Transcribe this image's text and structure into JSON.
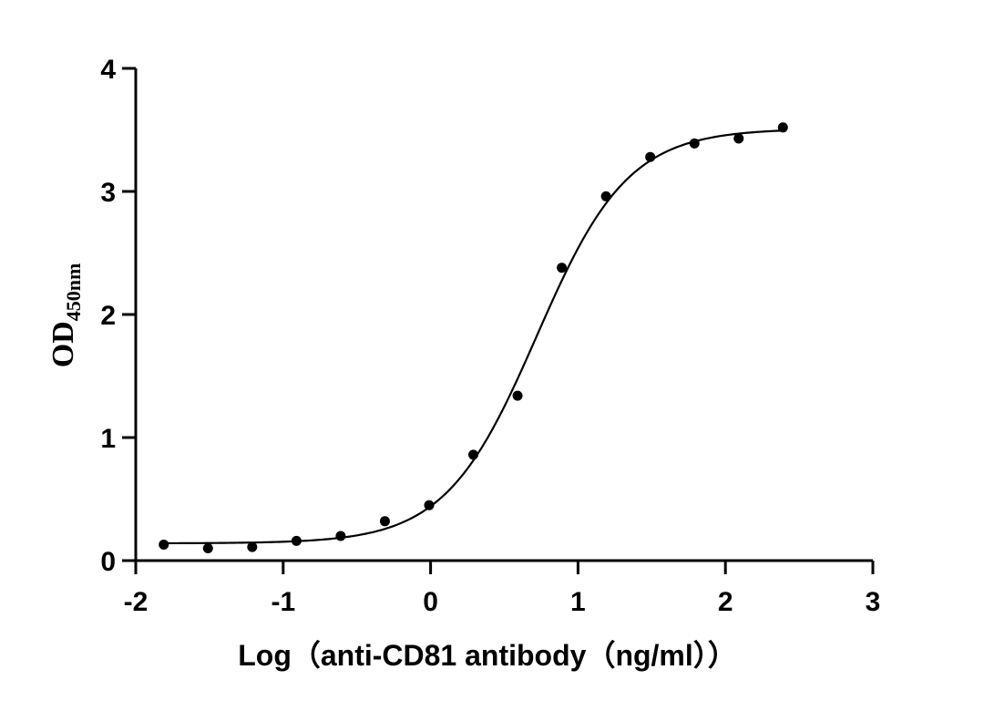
{
  "chart_data": {
    "type": "scatter",
    "title": "",
    "xlabel": "Log（anti-CD81  antibody（ng/ml））",
    "ylabel_main": "OD",
    "ylabel_sub": "450nm",
    "xlim": [
      -2,
      3
    ],
    "ylim": [
      0,
      4
    ],
    "xticks": [
      -2,
      -1,
      0,
      1,
      2,
      3
    ],
    "yticks": [
      0,
      1,
      2,
      3,
      4
    ],
    "grid": false,
    "legend": "none",
    "series": [
      {
        "x": [
          -1.81,
          -1.51,
          -1.21,
          -0.91,
          -0.61,
          -0.31,
          -0.01,
          0.29,
          0.59,
          0.89,
          1.19,
          1.49,
          1.79,
          2.09,
          2.39
        ],
        "y": [
          0.13,
          0.1,
          0.11,
          0.16,
          0.2,
          0.32,
          0.45,
          0.86,
          1.34,
          2.38,
          2.96,
          3.28,
          3.39,
          3.43,
          3.52
        ]
      }
    ],
    "fit_curve": {
      "model": "4PL",
      "bottom": 0.14,
      "top": 3.51,
      "logEC50": 0.72,
      "hill": 1.4,
      "xrange": [
        -1.81,
        2.39
      ]
    },
    "colors": {
      "points": "#000000",
      "curve": "#000000",
      "axes": "#000000"
    }
  }
}
